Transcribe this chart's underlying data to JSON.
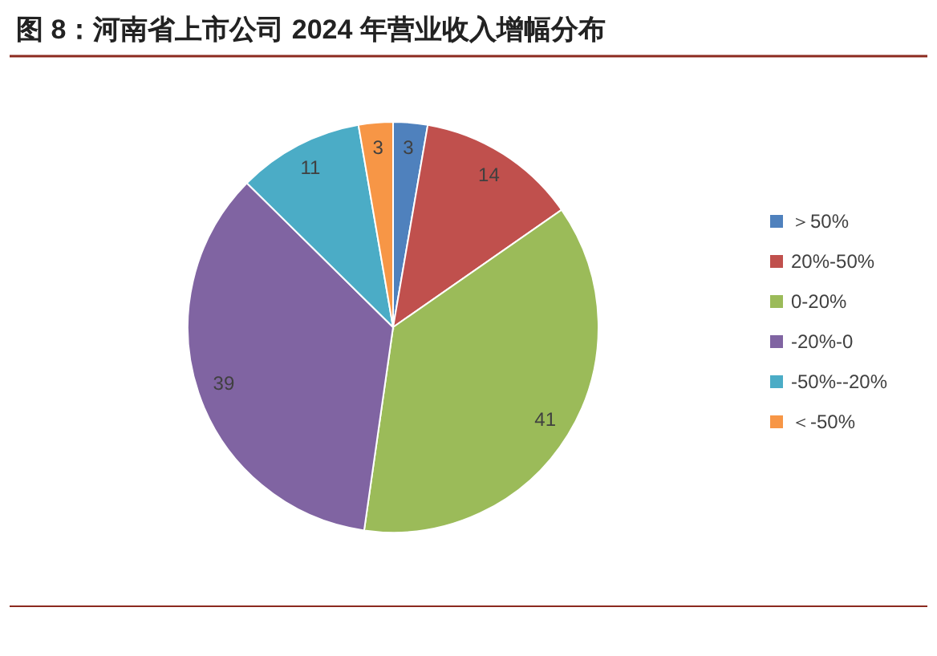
{
  "chart_data": {
    "type": "pie",
    "title": "图 8：河南省上市公司 2024 年营业收入增幅分布",
    "categories": [
      "＞50%",
      "20%-50%",
      "0-20%",
      "-20%-0",
      "-50%--20%",
      "＜-50%"
    ],
    "values": [
      3,
      14,
      41,
      39,
      11,
      3
    ],
    "colors": [
      "#4f81bd",
      "#c0504d",
      "#9bbb59",
      "#8064a2",
      "#4bacc6",
      "#f79646"
    ],
    "data_labels": true,
    "legend": "right"
  }
}
